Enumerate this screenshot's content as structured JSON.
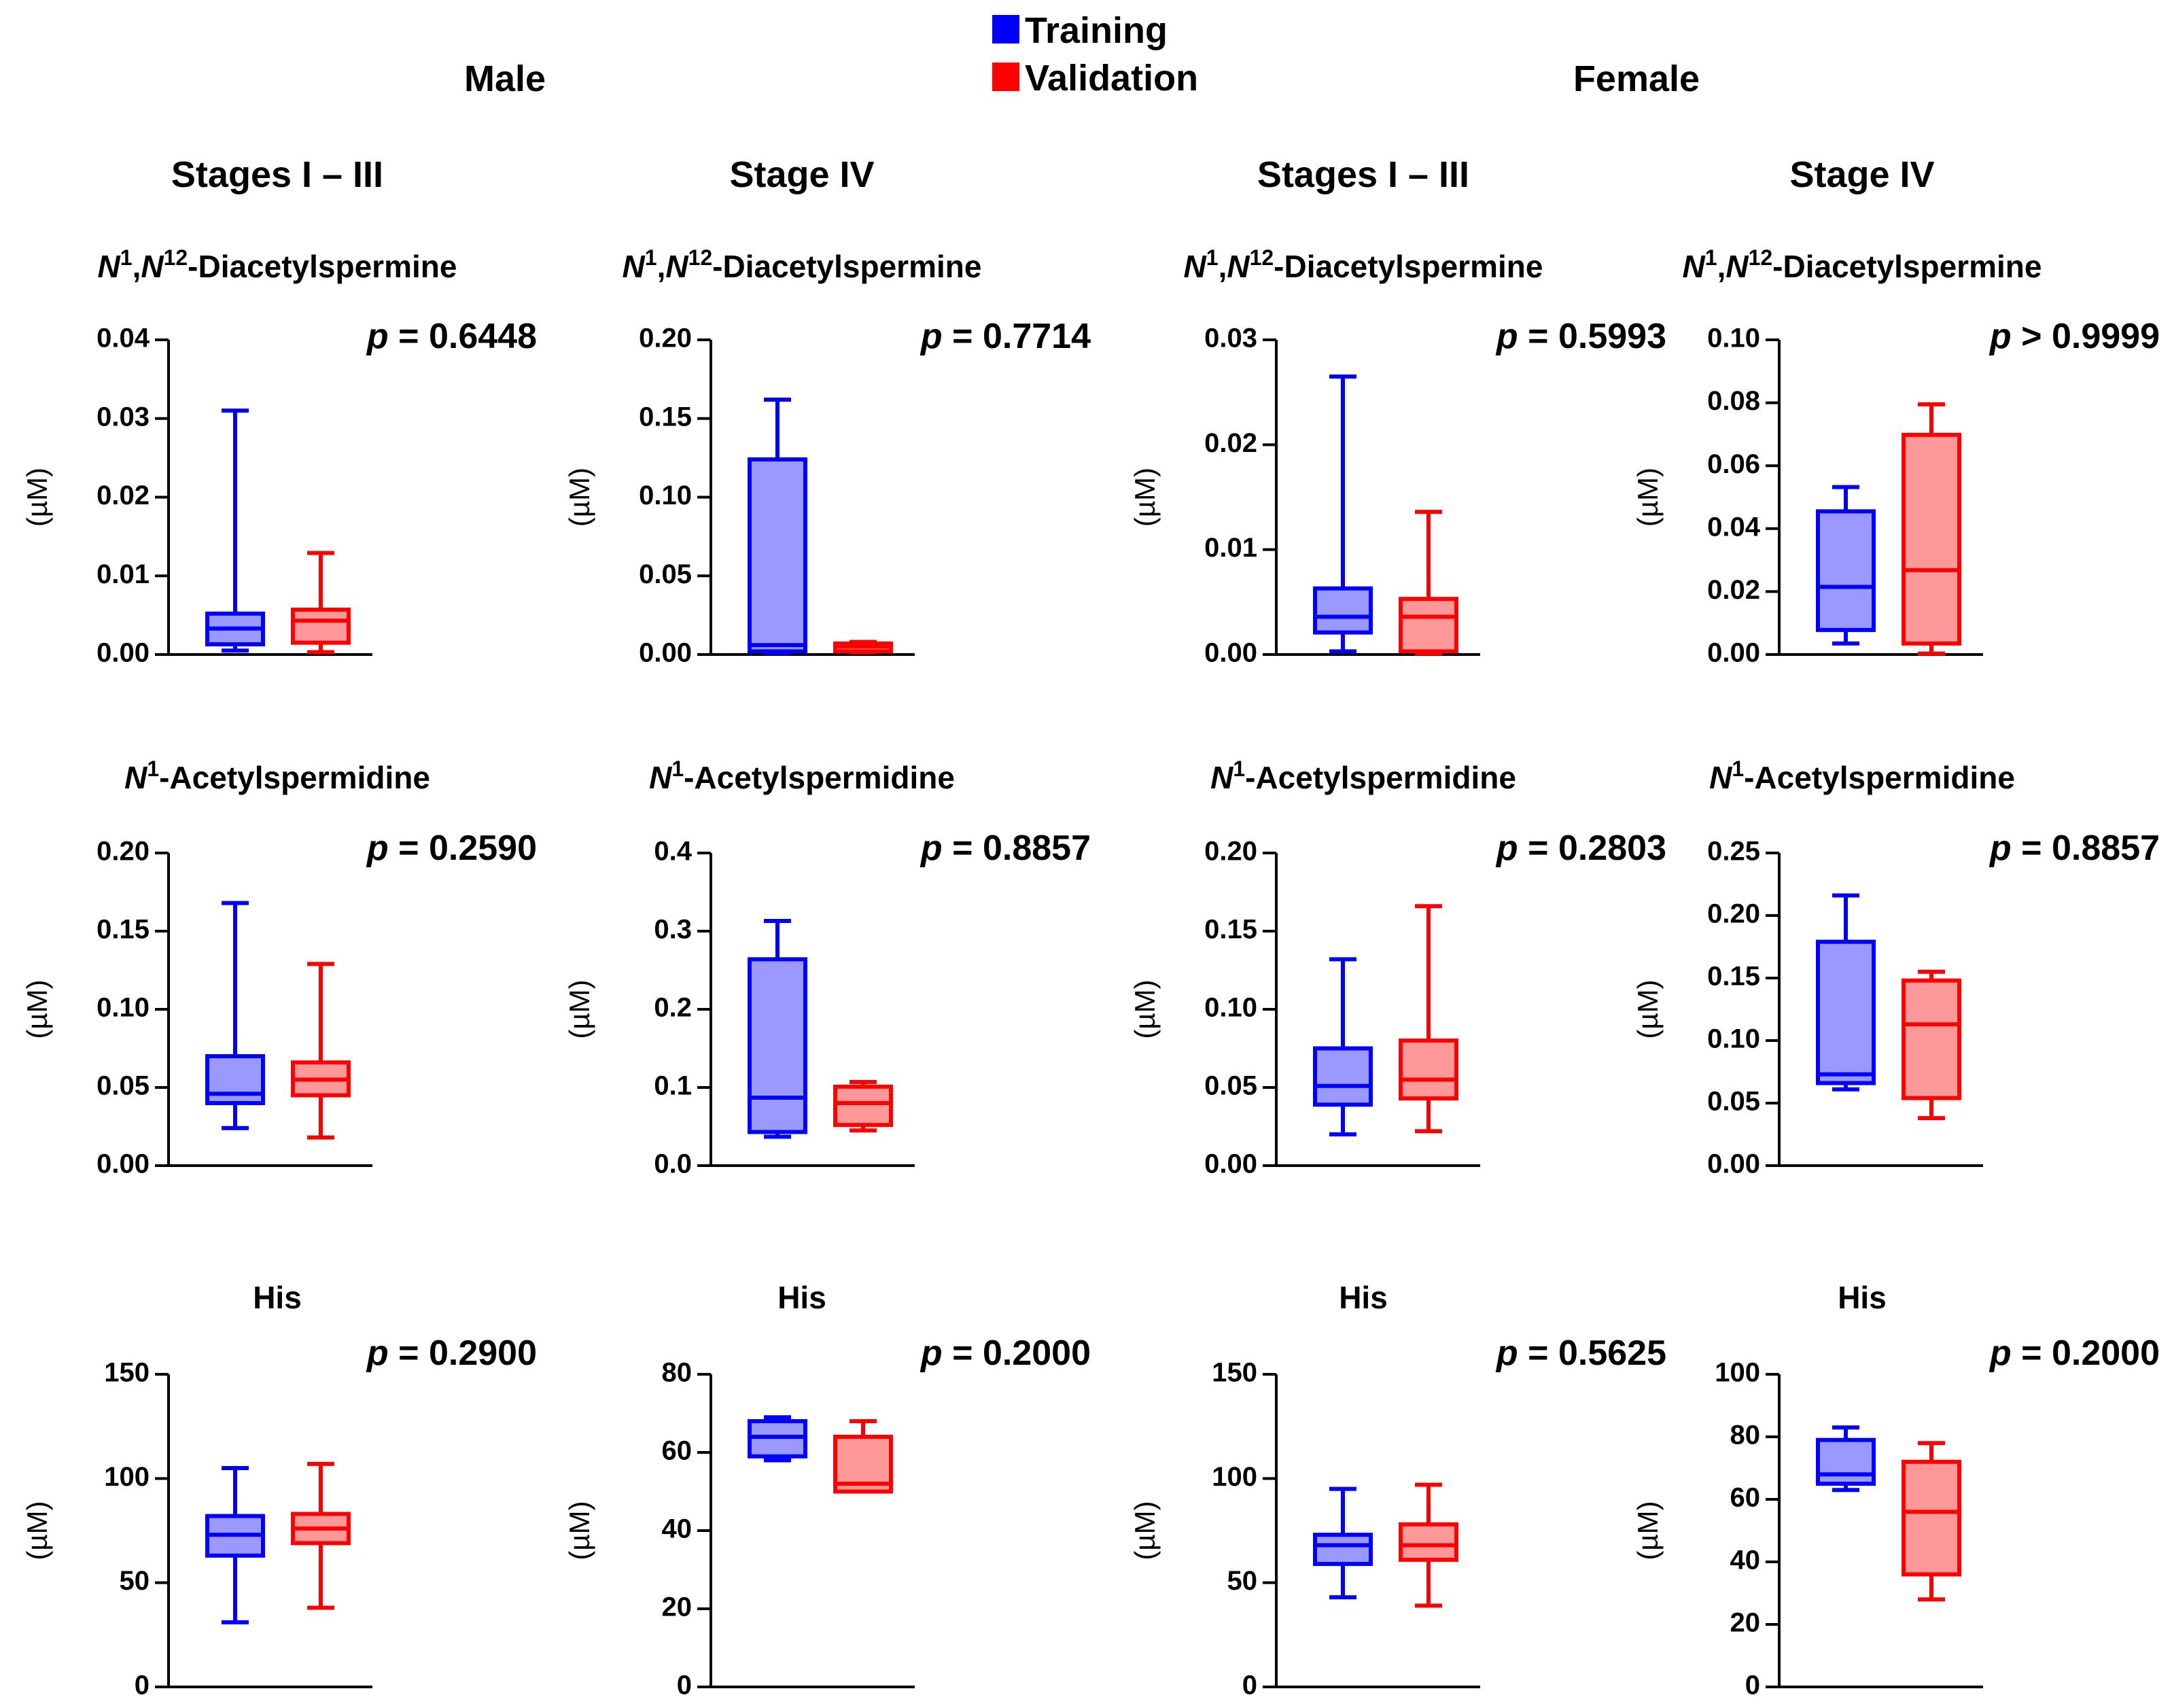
{
  "legend": [
    {
      "label": "Training",
      "color": "#0000FF",
      "fill": "#9999FF"
    },
    {
      "label": "Validation",
      "color": "#FF0000",
      "fill": "#FF9999"
    }
  ],
  "sex_headers": [
    "Male",
    "Female"
  ],
  "stage_headers": [
    "Stages I – III",
    "Stage IV",
    "Stages I – III",
    "Stage IV"
  ],
  "metabolites": [
    {
      "title_parts": [
        [
          "N",
          true
        ],
        [
          "1",
          false,
          "sup"
        ],
        [
          ",",
          false
        ],
        [
          "N",
          true
        ],
        [
          "12",
          false,
          "sup"
        ],
        [
          "-Diacetylspermine",
          false
        ]
      ]
    },
    {
      "title_parts": [
        [
          "N",
          true
        ],
        [
          "1",
          false,
          "sup"
        ],
        [
          "-Acetylspermidine",
          false
        ]
      ]
    },
    {
      "title_parts": [
        [
          "His",
          false
        ]
      ]
    }
  ],
  "chart_data": [
    {
      "type": "box",
      "sex": "Male",
      "stage": "Stages I – III",
      "metabolite": "N1,N12-Diacetylspermine",
      "ylabel": "(µM)",
      "ylim": [
        0,
        0.04
      ],
      "ticks": [
        "0.00",
        "0.01",
        "0.02",
        "0.03",
        "0.04"
      ],
      "p_label": "p",
      "p_value": "= 0.6448",
      "series": [
        {
          "name": "Training",
          "min": 0.0005,
          "q1": 0.0013,
          "median": 0.0033,
          "q3": 0.0052,
          "max": 0.031
        },
        {
          "name": "Validation",
          "min": 0.0003,
          "q1": 0.0015,
          "median": 0.0043,
          "q3": 0.0057,
          "max": 0.0129
        }
      ]
    },
    {
      "type": "box",
      "sex": "Male",
      "stage": "Stage IV",
      "metabolite": "N1,N12-Diacetylspermine",
      "ylabel": "(µM)",
      "ylim": [
        0,
        0.2
      ],
      "ticks": [
        "0.00",
        "0.05",
        "0.10",
        "0.15",
        "0.20"
      ],
      "p_label": "p",
      "p_value": "= 0.7714",
      "series": [
        {
          "name": "Training",
          "min": 0.001,
          "q1": 0.002,
          "median": 0.006,
          "q3": 0.124,
          "max": 0.162
        },
        {
          "name": "Validation",
          "min": 0.0015,
          "q1": 0.002,
          "median": 0.005,
          "q3": 0.007,
          "max": 0.008
        }
      ]
    },
    {
      "type": "box",
      "sex": "Female",
      "stage": "Stages I – III",
      "metabolite": "N1,N12-Diacetylspermine",
      "ylabel": "(µM)",
      "ylim": [
        0,
        0.03
      ],
      "ticks": [
        "0.00",
        "0.01",
        "0.02",
        "0.03"
      ],
      "p_label": "p",
      "p_value": "= 0.5993",
      "series": [
        {
          "name": "Training",
          "min": 0.0003,
          "q1": 0.0021,
          "median": 0.0036,
          "q3": 0.0063,
          "max": 0.0265
        },
        {
          "name": "Validation",
          "min": 0.0001,
          "q1": 0.0003,
          "median": 0.0036,
          "q3": 0.0053,
          "max": 0.0136
        }
      ]
    },
    {
      "type": "box",
      "sex": "Female",
      "stage": "Stage IV",
      "metabolite": "N1,N12-Diacetylspermine",
      "ylabel": "(µM)",
      "ylim": [
        0,
        0.1
      ],
      "ticks": [
        "0.00",
        "0.02",
        "0.04",
        "0.06",
        "0.08",
        "0.10"
      ],
      "p_label": "p",
      "p_value": "> 0.9999",
      "series": [
        {
          "name": "Training",
          "min": 0.0035,
          "q1": 0.0078,
          "median": 0.0215,
          "q3": 0.0455,
          "max": 0.0532
        },
        {
          "name": "Validation",
          "min": 0.0003,
          "q1": 0.0035,
          "median": 0.0268,
          "q3": 0.0698,
          "max": 0.0795
        }
      ]
    },
    {
      "type": "box",
      "sex": "Male",
      "stage": "Stages I – III",
      "metabolite": "N1-Acetylspermidine",
      "ylabel": "(µM)",
      "ylim": [
        0,
        0.2
      ],
      "ticks": [
        "0.00",
        "0.05",
        "0.10",
        "0.15",
        "0.20"
      ],
      "p_label": "p",
      "p_value": "= 0.2590",
      "series": [
        {
          "name": "Training",
          "min": 0.024,
          "q1": 0.04,
          "median": 0.046,
          "q3": 0.07,
          "max": 0.168
        },
        {
          "name": "Validation",
          "min": 0.018,
          "q1": 0.045,
          "median": 0.055,
          "q3": 0.066,
          "max": 0.129
        }
      ]
    },
    {
      "type": "box",
      "sex": "Male",
      "stage": "Stage IV",
      "metabolite": "N1-Acetylspermidine",
      "ylabel": "(µM)",
      "ylim": [
        0,
        0.4
      ],
      "ticks": [
        "0.0",
        "0.1",
        "0.2",
        "0.3",
        "0.4"
      ],
      "p_label": "p",
      "p_value": "= 0.8857",
      "series": [
        {
          "name": "Training",
          "min": 0.037,
          "q1": 0.043,
          "median": 0.087,
          "q3": 0.264,
          "max": 0.313
        },
        {
          "name": "Validation",
          "min": 0.045,
          "q1": 0.052,
          "median": 0.08,
          "q3": 0.101,
          "max": 0.107
        }
      ]
    },
    {
      "type": "box",
      "sex": "Female",
      "stage": "Stages I – III",
      "metabolite": "N1-Acetylspermidine",
      "ylabel": "(µM)",
      "ylim": [
        0,
        0.2
      ],
      "ticks": [
        "0.00",
        "0.05",
        "0.10",
        "0.15",
        "0.20"
      ],
      "p_label": "p",
      "p_value": "= 0.2803",
      "series": [
        {
          "name": "Training",
          "min": 0.02,
          "q1": 0.039,
          "median": 0.051,
          "q3": 0.075,
          "max": 0.132
        },
        {
          "name": "Validation",
          "min": 0.022,
          "q1": 0.043,
          "median": 0.055,
          "q3": 0.08,
          "max": 0.166
        }
      ]
    },
    {
      "type": "box",
      "sex": "Female",
      "stage": "Stage IV",
      "metabolite": "N1-Acetylspermidine",
      "ylabel": "(µM)",
      "ylim": [
        0,
        0.25
      ],
      "ticks": [
        "0.00",
        "0.05",
        "0.10",
        "0.15",
        "0.20",
        "0.25"
      ],
      "p_label": "p",
      "p_value": "= 0.8857",
      "series": [
        {
          "name": "Training",
          "min": 0.061,
          "q1": 0.066,
          "median": 0.073,
          "q3": 0.179,
          "max": 0.216
        },
        {
          "name": "Validation",
          "min": 0.038,
          "q1": 0.054,
          "median": 0.113,
          "q3": 0.148,
          "max": 0.155
        }
      ]
    },
    {
      "type": "box",
      "sex": "Male",
      "stage": "Stages I – III",
      "metabolite": "His",
      "ylabel": "(µM)",
      "ylim": [
        0,
        150
      ],
      "ticks": [
        "0",
        "50",
        "100",
        "150"
      ],
      "p_label": "p",
      "p_value": "= 0.2900",
      "series": [
        {
          "name": "Training",
          "min": 31,
          "q1": 63,
          "median": 73,
          "q3": 82,
          "max": 105
        },
        {
          "name": "Validation",
          "min": 38,
          "q1": 69,
          "median": 76,
          "q3": 83,
          "max": 107
        }
      ]
    },
    {
      "type": "box",
      "sex": "Male",
      "stage": "Stage IV",
      "metabolite": "His",
      "ylabel": "(µM)",
      "ylim": [
        0,
        80
      ],
      "ticks": [
        "0",
        "20",
        "40",
        "60",
        "80"
      ],
      "p_label": "p",
      "p_value": "= 0.2000",
      "series": [
        {
          "name": "Training",
          "min": 58,
          "q1": 59,
          "median": 64,
          "q3": 68,
          "max": 69
        },
        {
          "name": "Validation",
          "min": 50,
          "q1": 50,
          "median": 52,
          "q3": 64,
          "max": 68
        }
      ]
    },
    {
      "type": "box",
      "sex": "Female",
      "stage": "Stages I – III",
      "metabolite": "His",
      "ylabel": "(µM)",
      "ylim": [
        0,
        150
      ],
      "ticks": [
        "0",
        "50",
        "100",
        "150"
      ],
      "p_label": "p",
      "p_value": "= 0.5625",
      "series": [
        {
          "name": "Training",
          "min": 43,
          "q1": 59,
          "median": 68,
          "q3": 73,
          "max": 95
        },
        {
          "name": "Validation",
          "min": 39,
          "q1": 61,
          "median": 68,
          "q3": 78,
          "max": 97
        }
      ]
    },
    {
      "type": "box",
      "sex": "Female",
      "stage": "Stage IV",
      "metabolite": "His",
      "ylabel": "(µM)",
      "ylim": [
        0,
        100
      ],
      "ticks": [
        "0",
        "20",
        "40",
        "60",
        "80",
        "100"
      ],
      "p_label": "p",
      "p_value": "= 0.2000",
      "series": [
        {
          "name": "Training",
          "min": 63,
          "q1": 65,
          "median": 68,
          "q3": 79,
          "max": 83
        },
        {
          "name": "Validation",
          "min": 28,
          "q1": 36,
          "median": 56,
          "q3": 72,
          "max": 78
        }
      ]
    }
  ]
}
